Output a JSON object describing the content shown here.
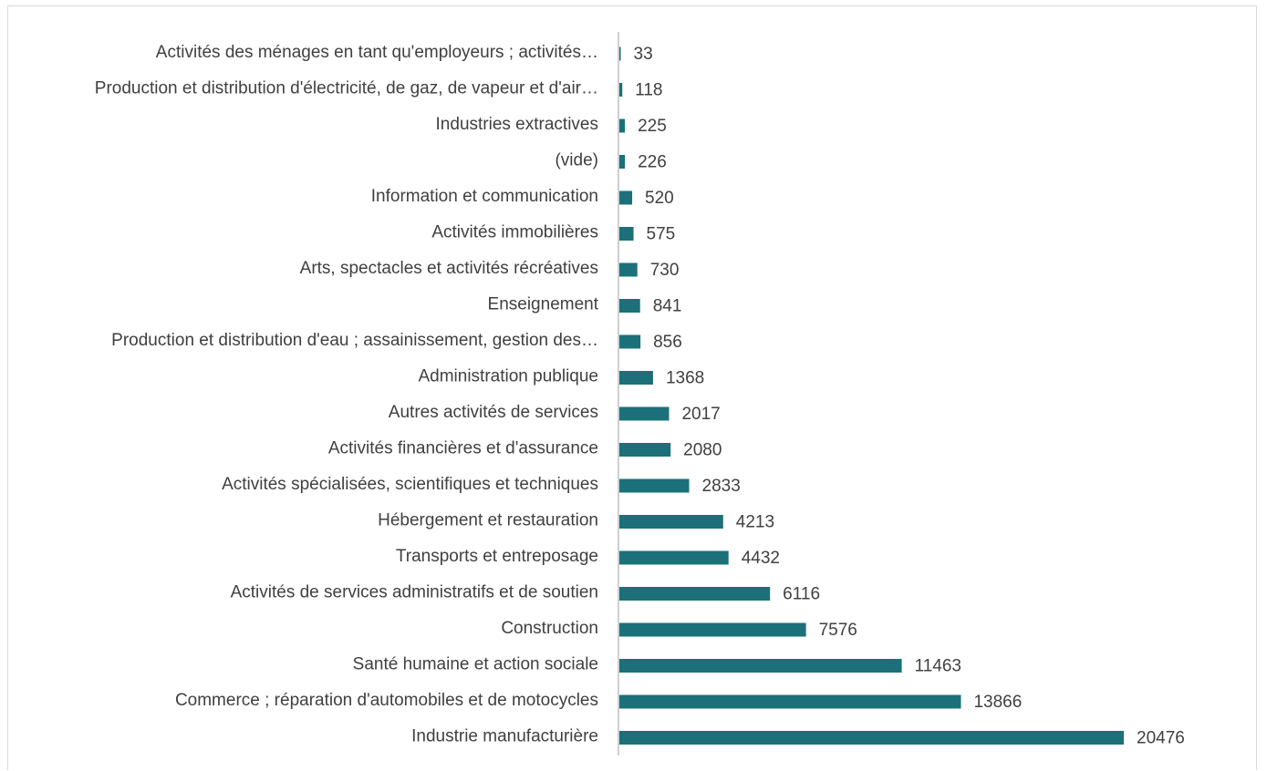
{
  "chart_data": {
    "type": "bar",
    "orientation": "horizontal",
    "title": "",
    "xlabel": "",
    "ylabel": "",
    "grid": false,
    "legend": "none",
    "bar_color": "#1b7079",
    "categories": [
      "Activités des ménages en tant qu'employeurs ; activités…",
      "Production et distribution d'électricité, de gaz, de vapeur et d'air…",
      "Industries extractives",
      "(vide)",
      "Information et communication",
      "Activités immobilières",
      "Arts, spectacles et activités récréatives",
      "Enseignement",
      "Production et distribution d'eau ; assainissement, gestion des…",
      "Administration publique",
      "Autres activités de services",
      "Activités financières et d'assurance",
      "Activités spécialisées, scientifiques et techniques",
      "Hébergement et restauration",
      "Transports et entreposage",
      "Activités de services administratifs et de soutien",
      "Construction",
      "Santé humaine et action sociale",
      "Commerce ; réparation d'automobiles et de motocycles",
      "Industrie manufacturière"
    ],
    "values": [
      33,
      118,
      225,
      226,
      520,
      575,
      730,
      841,
      856,
      1368,
      2017,
      2080,
      2833,
      4213,
      4432,
      6116,
      7576,
      11463,
      13866,
      20476
    ],
    "xlim": [
      0,
      20476
    ]
  }
}
